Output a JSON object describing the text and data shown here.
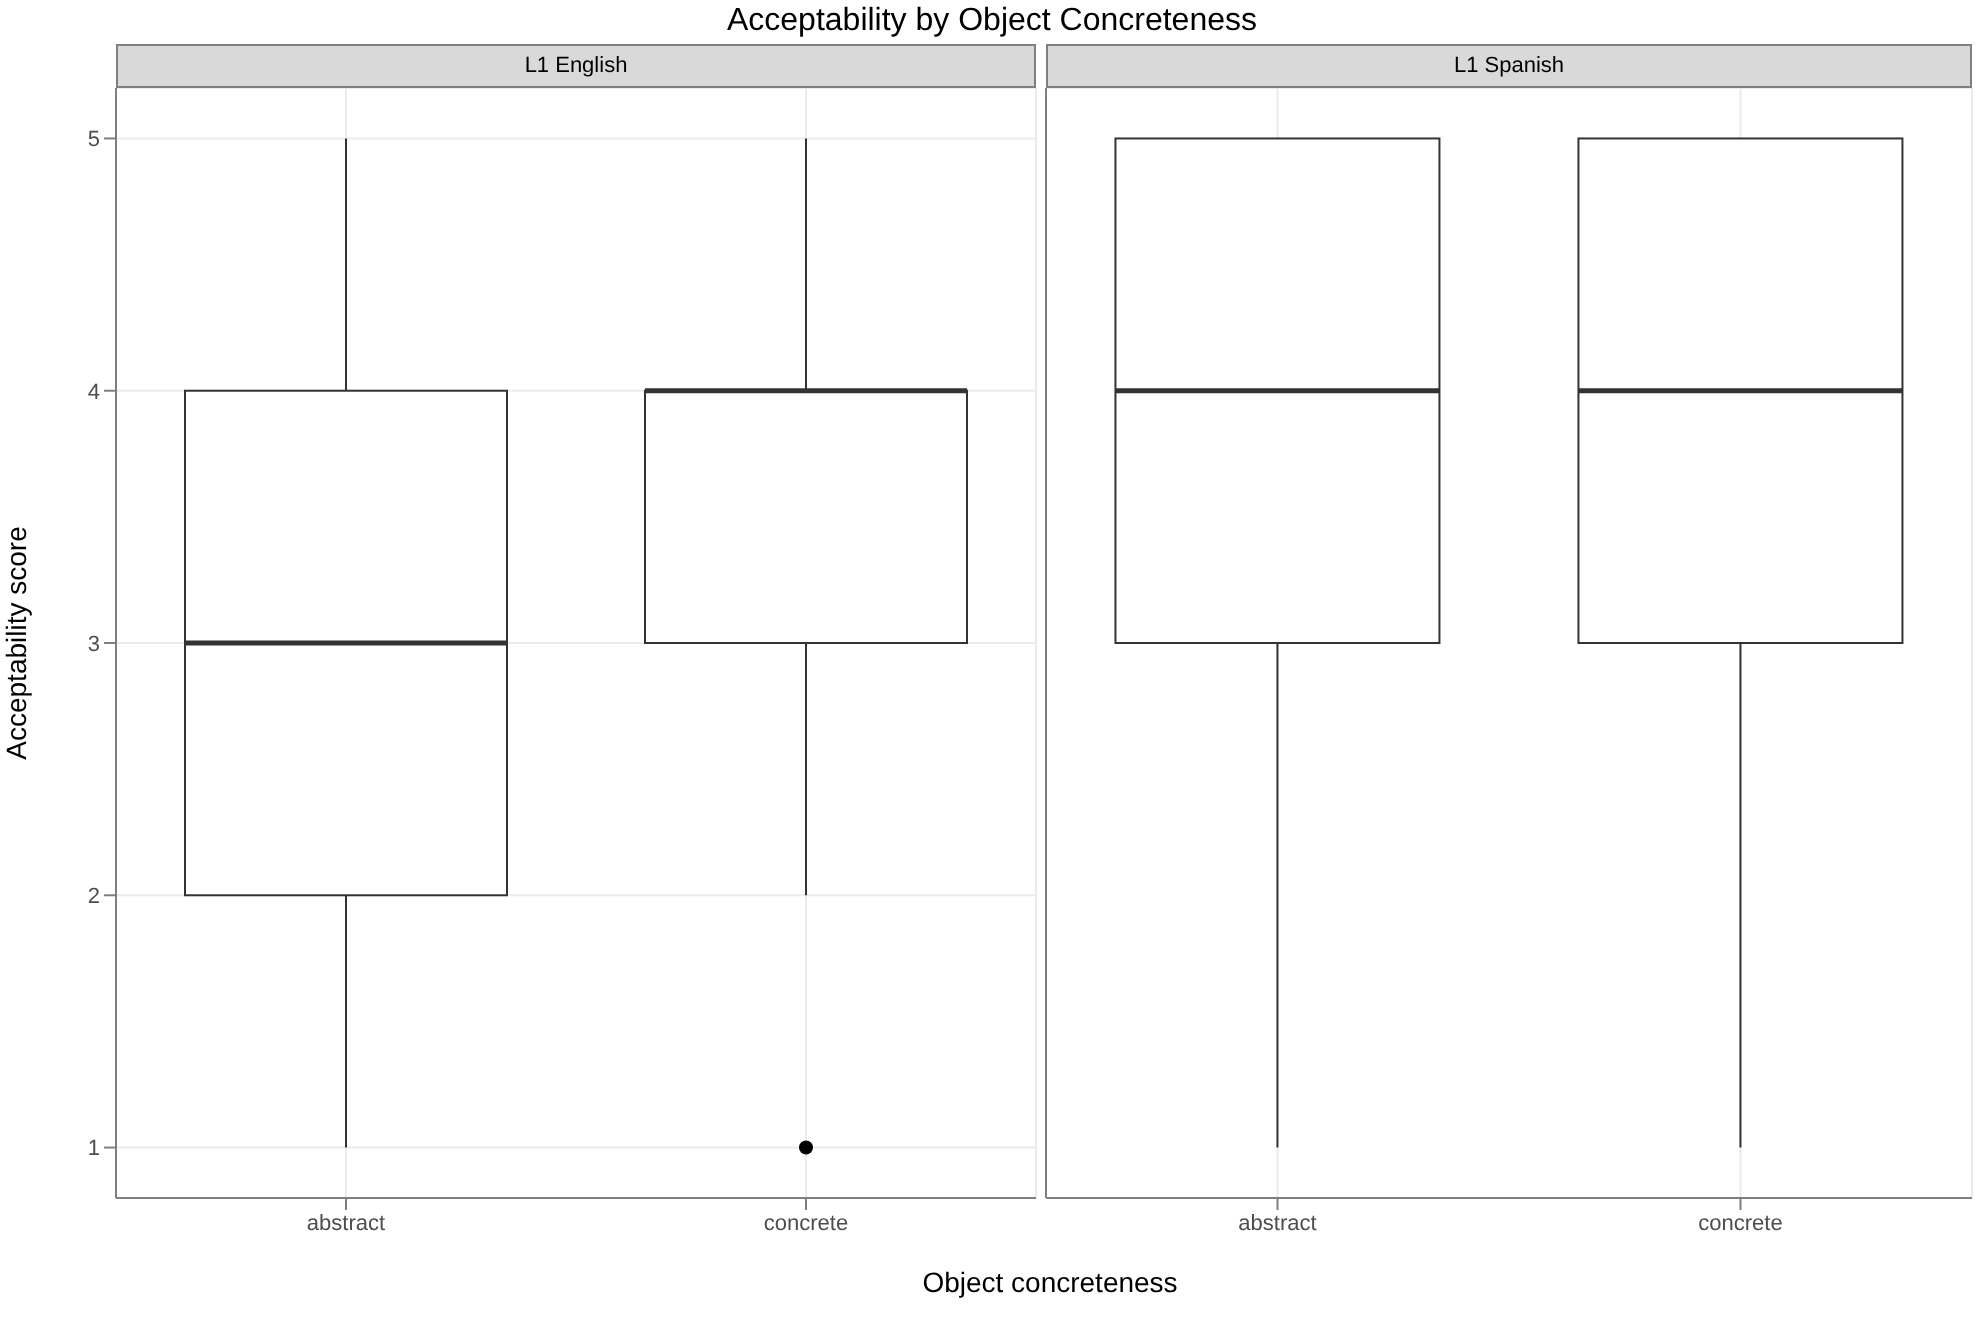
{
  "chart_data": [
    {
      "type": "box",
      "title": "Acceptability by Object Concreteness",
      "subtitle": "L1 English",
      "xlabel": "Object concreteness",
      "ylabel": "Acceptability score",
      "categories": [
        "abstract",
        "concrete"
      ],
      "ylim": [
        0.8,
        5.2
      ],
      "yticks": [
        1,
        2,
        3,
        4,
        5
      ],
      "grid": true,
      "boxes": [
        {
          "low": 1,
          "q1": 2,
          "median": 3,
          "q3": 4,
          "high": 5
        },
        {
          "low": 2,
          "q1": 3,
          "median": 4,
          "q3": 4,
          "high": 5,
          "outliers": [
            1
          ]
        }
      ]
    },
    {
      "type": "box",
      "subtitle": "L1 Spanish",
      "categories": [
        "abstract",
        "concrete"
      ],
      "ylim": [
        0.8,
        5.2
      ],
      "yticks": [
        1,
        2,
        3,
        4,
        5
      ],
      "grid": true,
      "tick_labels": "x",
      "boxes": [
        {
          "low": 1,
          "q1": 3,
          "median": 4,
          "q3": 5,
          "high": 5
        },
        {
          "low": 1,
          "q1": 3,
          "median": 4,
          "q3": 5,
          "high": 5
        }
      ]
    }
  ]
}
